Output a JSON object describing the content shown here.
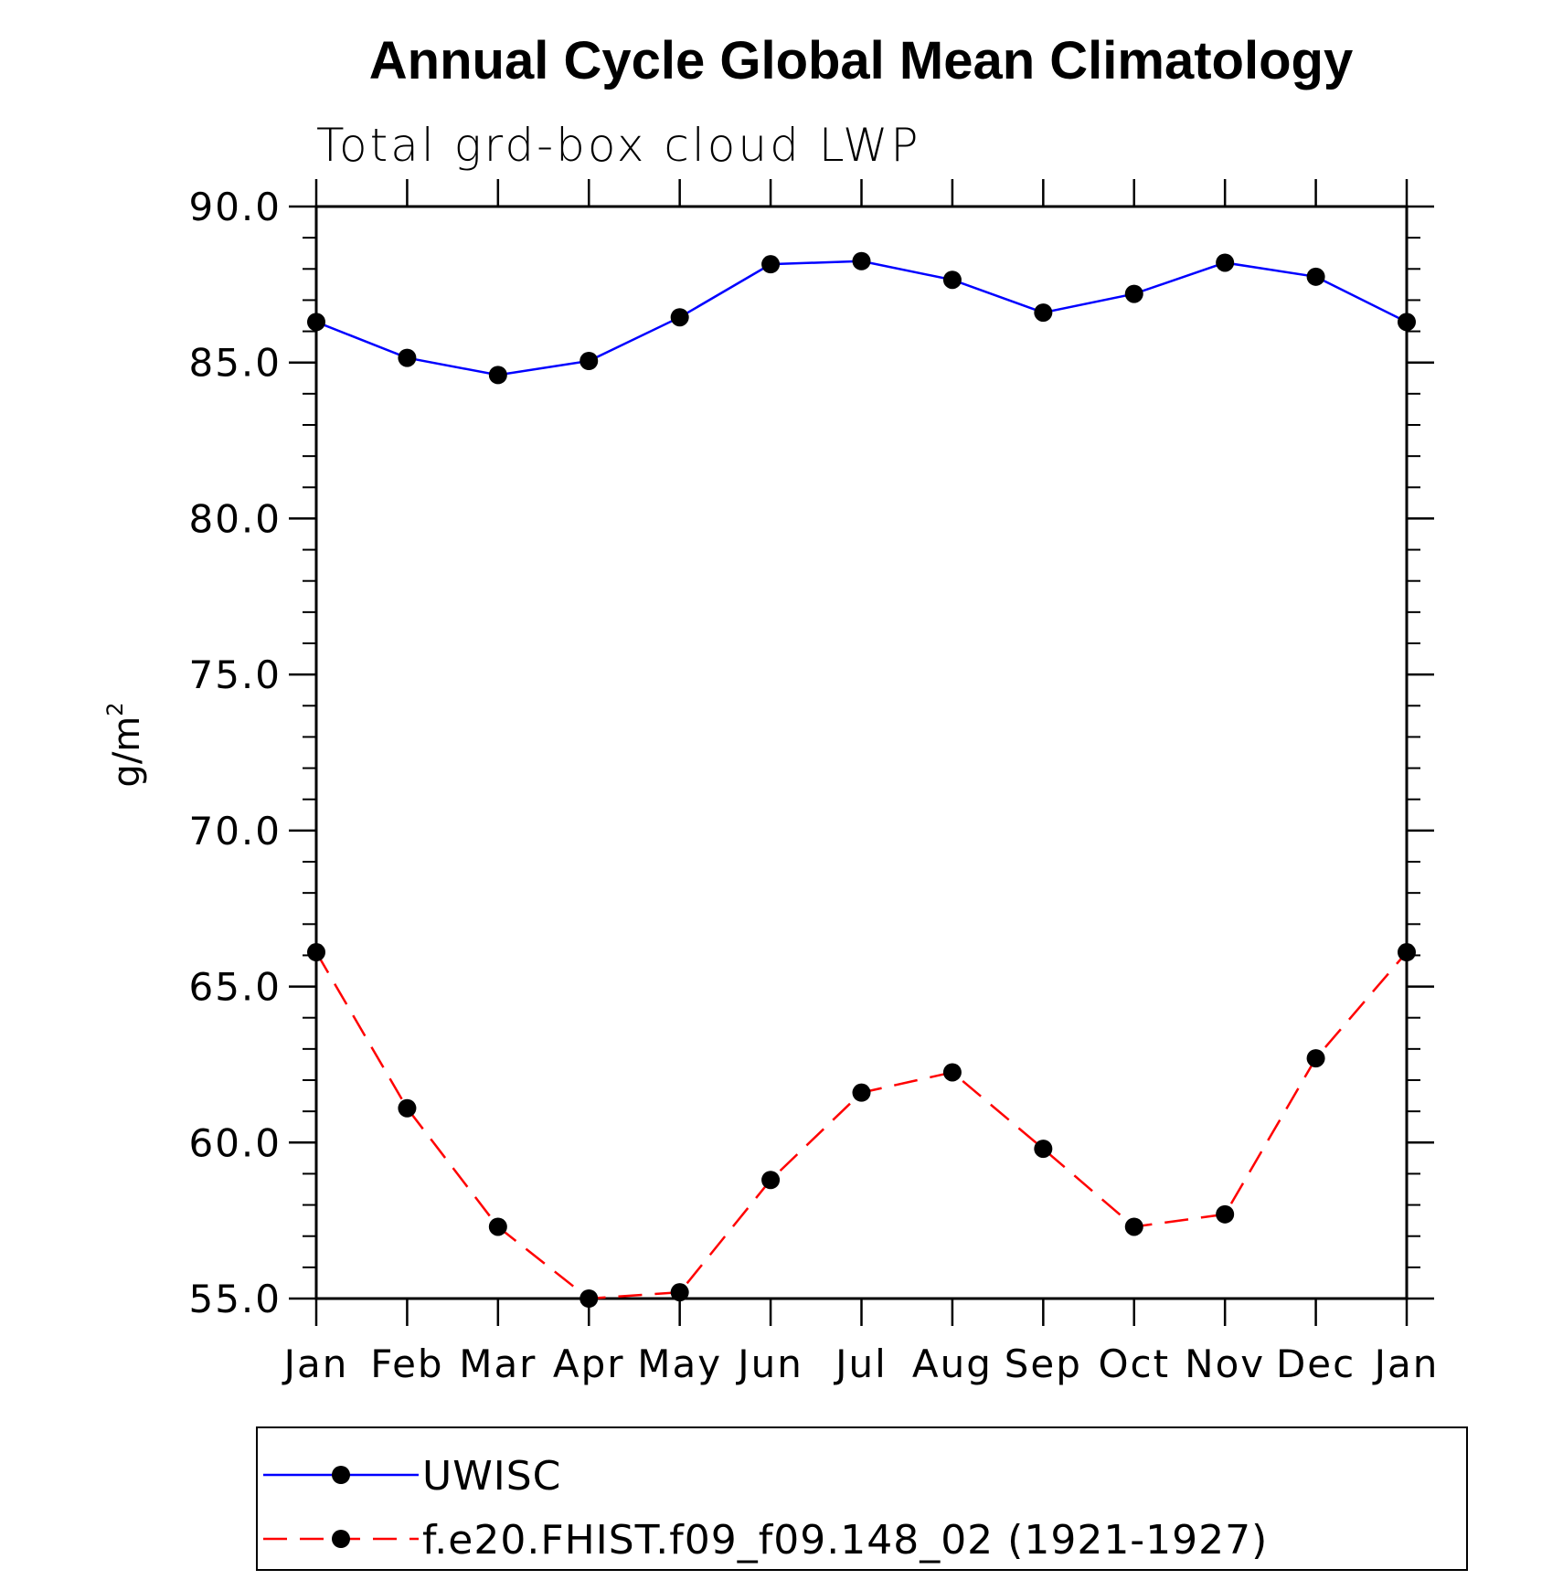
{
  "chart_data": {
    "type": "line",
    "title": "Annual Cycle Global Mean Climatology",
    "subtitle": "Total grd-box cloud LWP",
    "ylabel": "g/m²",
    "ylabel_base": "g/m",
    "ylabel_sup": "2",
    "xlabel": "",
    "categories": [
      "Jan",
      "Feb",
      "Mar",
      "Apr",
      "May",
      "Jun",
      "Jul",
      "Aug",
      "Sep",
      "Oct",
      "Nov",
      "Dec",
      "Jan"
    ],
    "ylim": [
      55.0,
      90.0
    ],
    "y_ticks": [
      "90.0",
      "85.0",
      "80.0",
      "75.0",
      "70.0",
      "65.0",
      "60.0",
      "55.0"
    ],
    "y_tick_values": [
      90,
      85,
      80,
      75,
      70,
      65,
      60,
      55
    ],
    "grid": false,
    "legend_position": "bottom",
    "series": [
      {
        "name": "UWISC",
        "color": "#0000ff",
        "dash": "solid",
        "values": [
          86.3,
          85.15,
          84.6,
          85.05,
          86.45,
          88.15,
          88.25,
          87.65,
          86.6,
          87.2,
          88.2,
          87.75,
          86.3
        ]
      },
      {
        "name": "f.e20.FHIST.f09_f09.148_02 (1921-1927)",
        "color": "#ff0000",
        "dash": "dashed",
        "values": [
          66.1,
          61.1,
          57.3,
          55.0,
          55.2,
          58.8,
          61.6,
          62.25,
          59.8,
          57.3,
          57.7,
          62.7,
          66.1
        ]
      }
    ]
  }
}
